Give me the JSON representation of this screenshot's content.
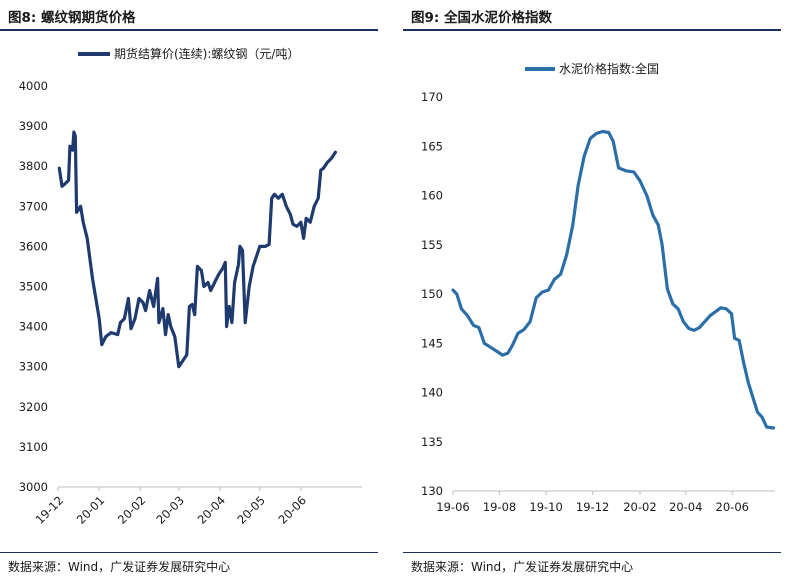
{
  "source_text": "数据来源：Wind，广发证券发展研究中心",
  "chart_data": [
    {
      "figure_label": "图8:",
      "title": "螺纹钢期货价格",
      "type": "line",
      "legend": "期货结算价(连续):螺纹钢（元/吨）",
      "legend_position": "top",
      "ylim": [
        3000,
        4000
      ],
      "yticks": [
        4000,
        3900,
        3800,
        3700,
        3600,
        3500,
        3400,
        3300,
        3200,
        3100,
        3000
      ],
      "xlim": [
        "2019-12-01",
        "2020-07-17"
      ],
      "xticks": [
        {
          "date": "2019-12-01",
          "label": "19-12"
        },
        {
          "date": "2020-01-01",
          "label": "20-01"
        },
        {
          "date": "2020-02-01",
          "label": "20-02"
        },
        {
          "date": "2020-03-01",
          "label": "20-03"
        },
        {
          "date": "2020-04-01",
          "label": "20-04"
        },
        {
          "date": "2020-05-01",
          "label": "20-05"
        },
        {
          "date": "2020-06-01",
          "label": "20-06"
        }
      ],
      "grid": false,
      "color": "#1f3a6e",
      "series": [
        {
          "name": "期货结算价(连续):螺纹钢（元/吨）",
          "points": [
            [
              "2019-12-02",
              3795
            ],
            [
              "2019-12-04",
              3750
            ],
            [
              "2019-12-06",
              3755
            ],
            [
              "2019-12-09",
              3765
            ],
            [
              "2019-12-10",
              3850
            ],
            [
              "2019-12-12",
              3840
            ],
            [
              "2019-12-13",
              3885
            ],
            [
              "2019-12-14",
              3875
            ],
            [
              "2019-12-15",
              3685
            ],
            [
              "2019-12-18",
              3700
            ],
            [
              "2019-12-20",
              3660
            ],
            [
              "2019-12-23",
              3620
            ],
            [
              "2019-12-27",
              3520
            ],
            [
              "2020-01-01",
              3420
            ],
            [
              "2020-01-03",
              3355
            ],
            [
              "2020-01-06",
              3375
            ],
            [
              "2020-01-10",
              3385
            ],
            [
              "2020-01-15",
              3380
            ],
            [
              "2020-01-17",
              3410
            ],
            [
              "2020-01-20",
              3420
            ],
            [
              "2020-01-23",
              3470
            ],
            [
              "2020-01-25",
              3395
            ],
            [
              "2020-01-28",
              3420
            ],
            [
              "2020-01-31",
              3470
            ],
            [
              "2020-02-03",
              3460
            ],
            [
              "2020-02-05",
              3440
            ],
            [
              "2020-02-08",
              3490
            ],
            [
              "2020-02-11",
              3450
            ],
            [
              "2020-02-14",
              3520
            ],
            [
              "2020-02-15",
              3410
            ],
            [
              "2020-02-18",
              3445
            ],
            [
              "2020-02-20",
              3380
            ],
            [
              "2020-02-22",
              3430
            ],
            [
              "2020-02-24",
              3400
            ],
            [
              "2020-02-27",
              3375
            ],
            [
              "2020-03-01",
              3300
            ],
            [
              "2020-03-04",
              3315
            ],
            [
              "2020-03-07",
              3330
            ],
            [
              "2020-03-09",
              3450
            ],
            [
              "2020-03-11",
              3455
            ],
            [
              "2020-03-13",
              3430
            ],
            [
              "2020-03-15",
              3550
            ],
            [
              "2020-03-18",
              3540
            ],
            [
              "2020-03-20",
              3500
            ],
            [
              "2020-03-23",
              3510
            ],
            [
              "2020-03-25",
              3490
            ],
            [
              "2020-03-28",
              3510
            ],
            [
              "2020-03-31",
              3530
            ],
            [
              "2020-04-03",
              3545
            ],
            [
              "2020-04-05",
              3560
            ],
            [
              "2020-04-06",
              3400
            ],
            [
              "2020-04-08",
              3450
            ],
            [
              "2020-04-10",
              3410
            ],
            [
              "2020-04-12",
              3510
            ],
            [
              "2020-04-15",
              3555
            ],
            [
              "2020-04-16",
              3600
            ],
            [
              "2020-04-18",
              3590
            ],
            [
              "2020-04-20",
              3410
            ],
            [
              "2020-04-23",
              3500
            ],
            [
              "2020-04-26",
              3550
            ],
            [
              "2020-04-28",
              3570
            ],
            [
              "2020-05-01",
              3600
            ],
            [
              "2020-05-05",
              3600
            ],
            [
              "2020-05-08",
              3605
            ],
            [
              "2020-05-10",
              3720
            ],
            [
              "2020-05-12",
              3730
            ],
            [
              "2020-05-15",
              3720
            ],
            [
              "2020-05-18",
              3730
            ],
            [
              "2020-05-21",
              3700
            ],
            [
              "2020-05-24",
              3680
            ],
            [
              "2020-05-26",
              3655
            ],
            [
              "2020-05-29",
              3650
            ],
            [
              "2020-06-01",
              3660
            ],
            [
              "2020-06-03",
              3620
            ],
            [
              "2020-06-05",
              3670
            ],
            [
              "2020-06-08",
              3660
            ],
            [
              "2020-06-11",
              3700
            ],
            [
              "2020-06-14",
              3720
            ],
            [
              "2020-06-16",
              3790
            ],
            [
              "2020-06-18",
              3795
            ],
            [
              "2020-06-21",
              3810
            ],
            [
              "2020-06-24",
              3820
            ],
            [
              "2020-06-27",
              3835
            ]
          ]
        }
      ]
    },
    {
      "figure_label": "图9:",
      "title": "全国水泥价格指数",
      "type": "line",
      "legend": "水泥价格指数:全国",
      "legend_position": "top",
      "ylim": [
        130,
        170
      ],
      "yticks": [
        170,
        165,
        160,
        155,
        150,
        145,
        140,
        135,
        130
      ],
      "xlim": [
        "2019-06-01",
        "2020-07-27"
      ],
      "xticks": [
        {
          "date": "2019-06-01",
          "label": "19-06"
        },
        {
          "date": "2019-08-01",
          "label": "19-08"
        },
        {
          "date": "2019-10-01",
          "label": "19-10"
        },
        {
          "date": "2019-12-01",
          "label": "19-12"
        },
        {
          "date": "2020-02-01",
          "label": "20-02"
        },
        {
          "date": "2020-04-01",
          "label": "20-04"
        },
        {
          "date": "2020-06-01",
          "label": "20-06"
        }
      ],
      "grid": false,
      "color": "#2b6ea8",
      "series": [
        {
          "name": "水泥价格指数:全国",
          "points": [
            [
              "2019-06-01",
              150.4
            ],
            [
              "2019-06-06",
              150.0
            ],
            [
              "2019-06-12",
              148.5
            ],
            [
              "2019-06-20",
              147.8
            ],
            [
              "2019-06-28",
              146.8
            ],
            [
              "2019-07-05",
              146.6
            ],
            [
              "2019-07-12",
              145.0
            ],
            [
              "2019-07-20",
              144.6
            ],
            [
              "2019-07-28",
              144.2
            ],
            [
              "2019-08-05",
              143.8
            ],
            [
              "2019-08-12",
              144.0
            ],
            [
              "2019-08-18",
              144.8
            ],
            [
              "2019-08-25",
              146.0
            ],
            [
              "2019-09-02",
              146.4
            ],
            [
              "2019-09-10",
              147.2
            ],
            [
              "2019-09-18",
              149.6
            ],
            [
              "2019-09-26",
              150.2
            ],
            [
              "2019-10-04",
              150.4
            ],
            [
              "2019-10-12",
              151.5
            ],
            [
              "2019-10-20",
              152.0
            ],
            [
              "2019-10-28",
              154.0
            ],
            [
              "2019-11-05",
              157.0
            ],
            [
              "2019-11-12",
              161.0
            ],
            [
              "2019-11-20",
              164.0
            ],
            [
              "2019-11-28",
              165.8
            ],
            [
              "2019-12-06",
              166.3
            ],
            [
              "2019-12-14",
              166.5
            ],
            [
              "2019-12-22",
              166.4
            ],
            [
              "2019-12-28",
              165.5
            ],
            [
              "2020-01-04",
              162.8
            ],
            [
              "2020-01-14",
              162.5
            ],
            [
              "2020-01-24",
              162.4
            ],
            [
              "2020-02-01",
              161.5
            ],
            [
              "2020-02-10",
              160.0
            ],
            [
              "2020-02-18",
              158.0
            ],
            [
              "2020-02-25",
              157.0
            ],
            [
              "2020-03-01",
              155.0
            ],
            [
              "2020-03-08",
              150.5
            ],
            [
              "2020-03-15",
              149.0
            ],
            [
              "2020-03-22",
              148.5
            ],
            [
              "2020-03-29",
              147.2
            ],
            [
              "2020-04-05",
              146.5
            ],
            [
              "2020-04-12",
              146.3
            ],
            [
              "2020-04-19",
              146.6
            ],
            [
              "2020-04-26",
              147.2
            ],
            [
              "2020-05-03",
              147.8
            ],
            [
              "2020-05-10",
              148.2
            ],
            [
              "2020-05-17",
              148.6
            ],
            [
              "2020-05-24",
              148.5
            ],
            [
              "2020-05-31",
              148.0
            ],
            [
              "2020-06-04",
              145.5
            ],
            [
              "2020-06-10",
              145.3
            ],
            [
              "2020-06-16",
              143.0
            ],
            [
              "2020-06-22",
              141.0
            ],
            [
              "2020-06-28",
              139.5
            ],
            [
              "2020-07-04",
              138.0
            ],
            [
              "2020-07-10",
              137.5
            ],
            [
              "2020-07-16",
              136.5
            ],
            [
              "2020-07-25",
              136.4
            ]
          ]
        }
      ]
    }
  ]
}
